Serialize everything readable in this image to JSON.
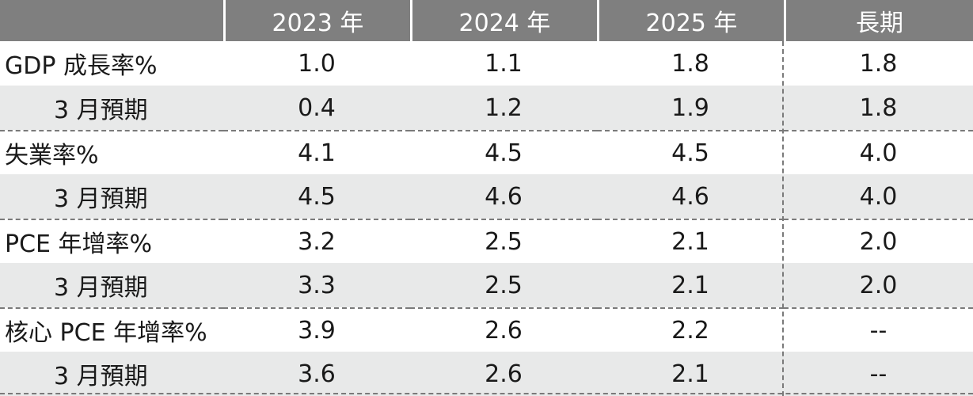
{
  "table": {
    "headers": [
      "",
      "2023 年",
      "2024 年",
      "2025 年",
      "長期"
    ],
    "rows": [
      {
        "label": "GDP 成長率%",
        "values": [
          "1.0",
          "1.1",
          "1.8",
          "1.8"
        ]
      },
      {
        "label": "3 月預期",
        "values": [
          "0.4",
          "1.2",
          "1.9",
          "1.8"
        ]
      },
      {
        "label": "失業率%",
        "values": [
          "4.1",
          "4.5",
          "4.5",
          "4.0"
        ]
      },
      {
        "label": "3 月預期",
        "values": [
          "4.5",
          "4.6",
          "4.6",
          "4.0"
        ]
      },
      {
        "label": "PCE 年增率%",
        "values": [
          "3.2",
          "2.5",
          "2.1",
          "2.0"
        ]
      },
      {
        "label": "3 月預期",
        "values": [
          "3.3",
          "2.5",
          "2.1",
          "2.0"
        ]
      },
      {
        "label": "核心 PCE 年增率%",
        "values": [
          "3.9",
          "2.6",
          "2.2",
          "--"
        ]
      },
      {
        "label": "3 月預期",
        "values": [
          "3.6",
          "2.6",
          "2.1",
          "--"
        ]
      }
    ]
  },
  "colors": {
    "header_bg": "#7f7f7f",
    "header_text": "#ffffff",
    "alt_row_bg": "#e8e9e9",
    "divider": "#7a7a7a"
  }
}
